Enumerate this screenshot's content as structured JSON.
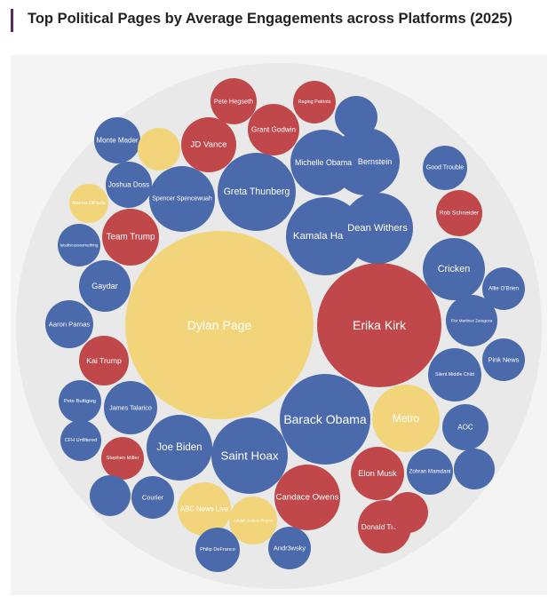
{
  "header": {
    "title": "Top Political Pages by Average Engagements across Platforms (2025)"
  },
  "colors": {
    "accent": "#5a2a5e",
    "blue": "#4a6aab",
    "red": "#c0484b",
    "yellow": "#f2d57a",
    "outer_circle": "#e9e9e9",
    "panel": "#f4f4f4"
  },
  "chart_data": {
    "type": "packed-bubble",
    "title": "Top Political Pages by Average Engagements across Platforms (2025)",
    "color_groups": {
      "blue": "#4a6aab",
      "red": "#c0484b",
      "yellow": "#f2d57a"
    },
    "nodes": [
      {
        "label": "Dylan Page",
        "color": "yellow",
        "radius": 106
      },
      {
        "label": "Erika Kirk",
        "color": "red",
        "radius": 70
      },
      {
        "label": "Barack Obama",
        "color": "blue",
        "radius": 51
      },
      {
        "label": "Greta Thunberg",
        "color": "blue",
        "radius": 44
      },
      {
        "label": "Saint Hoax",
        "color": "blue",
        "radius": 43
      },
      {
        "label": "Kamala Harris",
        "color": "blue",
        "radius": 44
      },
      {
        "label": "Dean Withers",
        "color": "blue",
        "radius": 40
      },
      {
        "label": "Matt Bernstein",
        "color": "blue",
        "radius": 38
      },
      {
        "label": "Michelle Obama",
        "color": "blue",
        "radius": 37
      },
      {
        "label": "Joe Biden",
        "color": "blue",
        "radius": 37
      },
      {
        "label": "Candace Owens",
        "color": "red",
        "radius": 37
      },
      {
        "label": "Spencer Spencewuah",
        "color": "blue",
        "radius": 37
      },
      {
        "label": "Metro",
        "color": "yellow",
        "radius": 38
      },
      {
        "label": "Cricken",
        "color": "blue",
        "radius": 35
      },
      {
        "label": "Team Trump",
        "color": "red",
        "radius": 32
      },
      {
        "label": "JD Vance",
        "color": "red",
        "radius": 31
      },
      {
        "label": "Elon Musk",
        "color": "red",
        "radius": 30
      },
      {
        "label": "James Talarico",
        "color": "blue",
        "radius": 30
      },
      {
        "label": "Gaydar",
        "color": "blue",
        "radius": 29
      },
      {
        "label": "Silent Middle Child",
        "color": "blue",
        "radius": 30
      },
      {
        "label": "Grant Godwin",
        "color": "red",
        "radius": 29
      },
      {
        "label": "Kai Trump",
        "color": "red",
        "radius": 28
      },
      {
        "label": "ABC News Live",
        "color": "yellow",
        "radius": 30
      },
      {
        "label": "Donald Trump",
        "color": "red",
        "radius": 30
      },
      {
        "label": "Flor Martinez Zaragoza",
        "color": "blue",
        "radius": 29
      },
      {
        "label": "Adalah Justice Project",
        "color": "yellow",
        "radius": 27
      },
      {
        "label": "Aaron Parnas",
        "color": "blue",
        "radius": 27
      },
      {
        "label": "Joshua Doss",
        "color": "blue",
        "radius": 26
      },
      {
        "label": "Pete Hegseth",
        "color": "red",
        "radius": 26
      },
      {
        "label": "Rob Schneider",
        "color": "red",
        "radius": 26
      },
      {
        "label": "Courier",
        "color": "blue",
        "radius": 24
      },
      {
        "label": "Monte Mader",
        "color": "blue",
        "radius": 26
      },
      {
        "label": "Zohran Mamdani",
        "color": "blue",
        "radius": 26
      },
      {
        "label": "AOC",
        "color": "blue",
        "radius": 26
      },
      {
        "label": "Good Trouble",
        "color": "blue",
        "radius": 25
      },
      {
        "label": "Stephen Miller",
        "color": "red",
        "radius": 24
      },
      {
        "label": "Pete Buttigieg",
        "color": "blue",
        "radius": 24
      },
      {
        "label": "Philip DeFranco",
        "color": "blue",
        "radius": 25
      },
      {
        "label": "Pink News",
        "color": "blue",
        "radius": 24
      },
      {
        "label": "Andr3wsky",
        "color": "blue",
        "radius": 24
      },
      {
        "label": "Allie O'Brien",
        "color": "blue",
        "radius": 24
      },
      {
        "label": "Raging Patriots",
        "color": "red",
        "radius": 24
      },
      {
        "label": "",
        "color": "yellow",
        "radius": 24
      },
      {
        "label": "",
        "color": "blue",
        "radius": 24
      },
      {
        "label": "",
        "color": "blue",
        "radius": 23
      },
      {
        "label": "",
        "color": "red",
        "radius": 23
      },
      {
        "label": "",
        "color": "blue",
        "radius": 23
      },
      {
        "label": "Marcus DiPaola",
        "color": "yellow",
        "radius": 22
      },
      {
        "label": "CFH Unfiltered",
        "color": "blue",
        "radius": 23
      },
      {
        "label": "letsdiscusssomething",
        "color": "blue",
        "radius": 24
      }
    ]
  }
}
